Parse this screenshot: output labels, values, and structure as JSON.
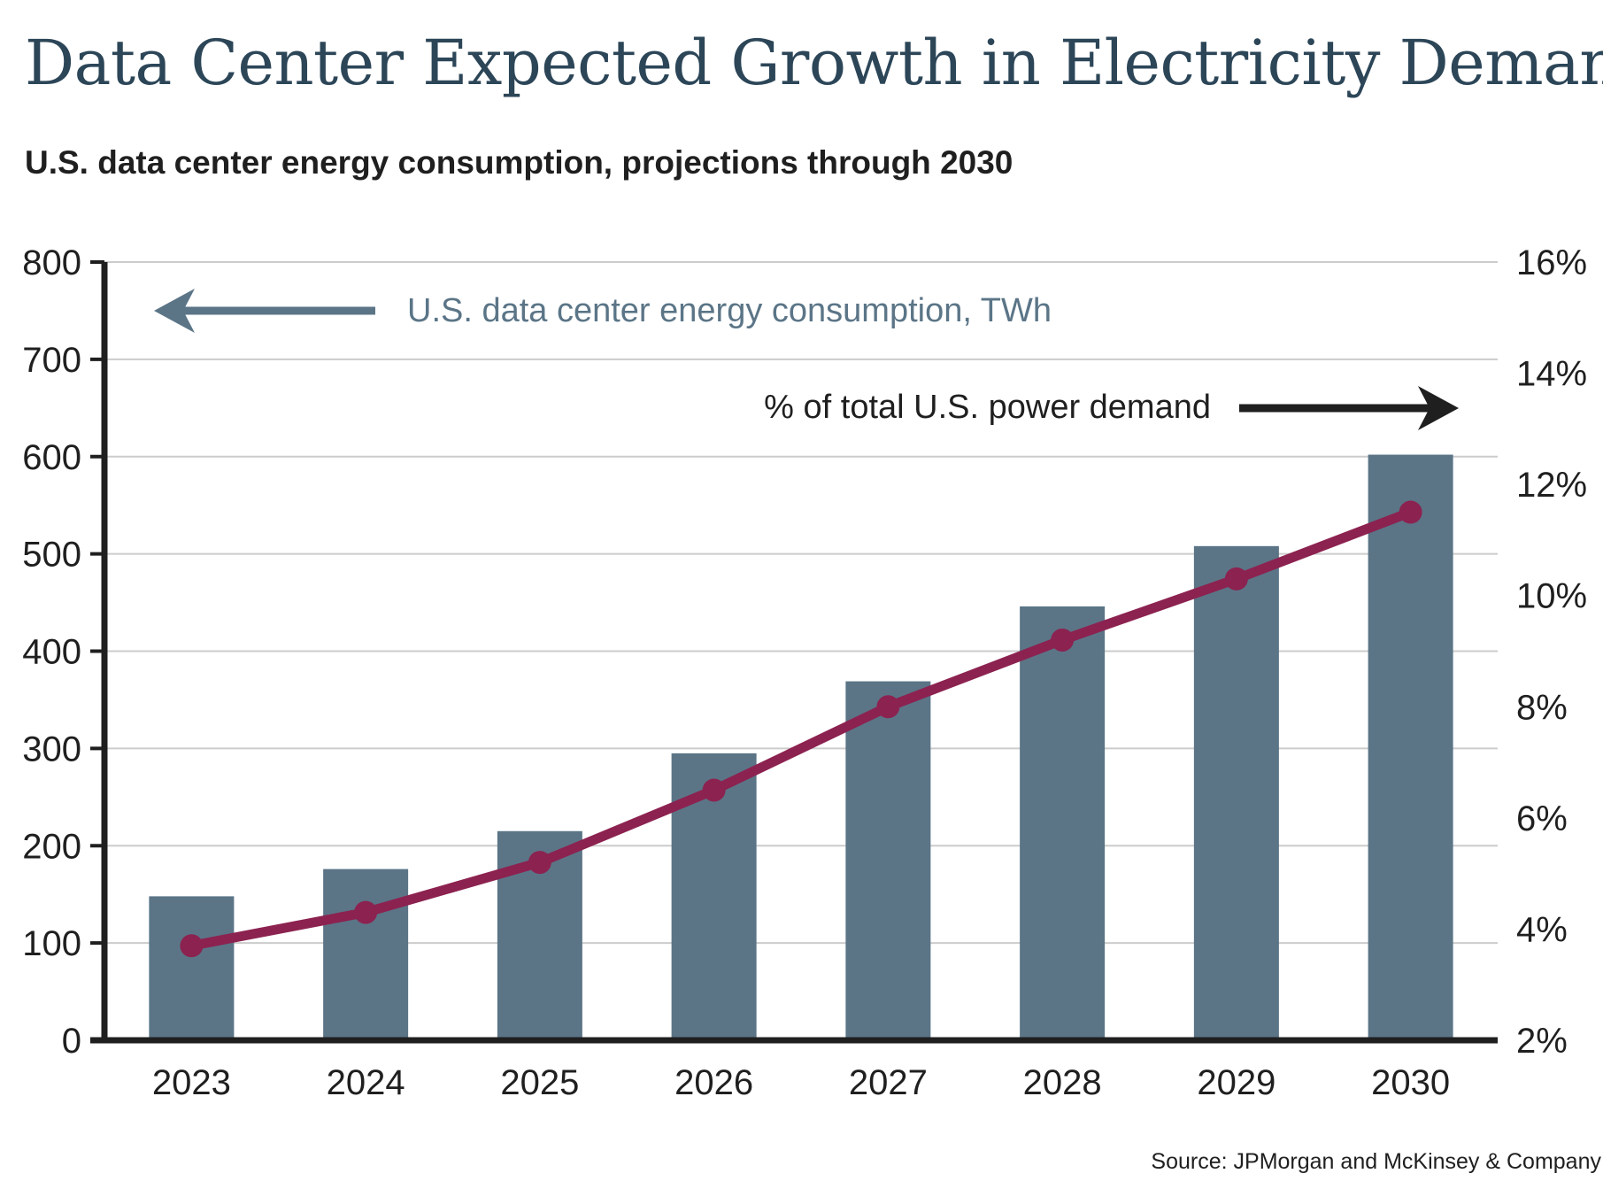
{
  "title": "Data Center Expected Growth in Electricity Demand",
  "subtitle": "U.S. data center energy consumption, projections through 2030",
  "source": "Source: JPMorgan and McKinsey & Company",
  "colors": {
    "bar": "#5b7587",
    "line": "#8c2250",
    "grid": "#cccccc",
    "axis": "#1f1f1f",
    "left_annotation": "#5b7587",
    "right_annotation": "#1f1f1f"
  },
  "chart_data": {
    "type": "bar",
    "categories": [
      "2023",
      "2024",
      "2025",
      "2026",
      "2027",
      "2028",
      "2029",
      "2030"
    ],
    "series": [
      {
        "name": "U.S. data center energy consumption, TWh",
        "type": "bar",
        "axis": "left",
        "values": [
          148,
          176,
          215,
          295,
          369,
          446,
          508,
          602
        ]
      },
      {
        "name": "% of total U.S. power demand",
        "type": "line",
        "axis": "right",
        "values": [
          3.7,
          4.3,
          5.2,
          6.5,
          8.0,
          9.2,
          10.3,
          11.5
        ]
      }
    ],
    "left_axis": {
      "ylim": [
        0,
        800
      ],
      "ticks": [
        "0",
        "100",
        "200",
        "300",
        "400",
        "500",
        "600",
        "700",
        "800"
      ]
    },
    "right_axis": {
      "ylim": [
        2,
        16
      ],
      "ticks": [
        "2%",
        "4%",
        "6%",
        "8%",
        "10%",
        "12%",
        "14%",
        "16%"
      ]
    },
    "grid": true,
    "annotations": {
      "left_label": "U.S. data center energy consumption, TWh",
      "right_label": "% of total U.S. power demand"
    }
  }
}
